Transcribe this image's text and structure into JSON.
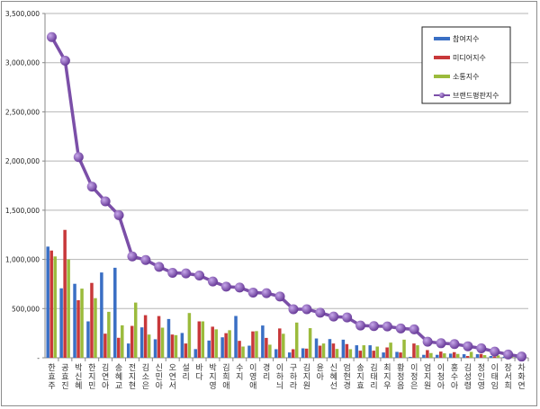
{
  "chart_data": {
    "type": "bar",
    "title": "",
    "xlabel": "",
    "ylabel": "",
    "ylim": [
      0,
      3500000
    ],
    "yticks": [
      "-",
      "500,000",
      "1,000,000",
      "1,500,000",
      "2,000,000",
      "2,500,000",
      "3,000,000",
      "3,500,000"
    ],
    "grid": true,
    "legend_position": "top-right",
    "categories": [
      "한효주",
      "공효진",
      "박신혜",
      "한지민",
      "김연아",
      "송혜교",
      "전지현",
      "김소은",
      "신민아",
      "오연서",
      "설리",
      "바다",
      "박지영",
      "김희애",
      "수지",
      "이영애",
      "경리",
      "이하늬",
      "구하라",
      "김지원",
      "윤아",
      "신혜선",
      "엄현경",
      "송지효",
      "김태리",
      "최지우",
      "황정음",
      "이정은",
      "엄지원",
      "이청아",
      "홍수아",
      "김성령",
      "정인영",
      "이태임",
      "장서희",
      "차화연"
    ],
    "series": [
      {
        "name": "참여지수",
        "kind": "bar",
        "color": "#3a6fc4",
        "values": [
          1130000,
          706000,
          752000,
          370000,
          867000,
          915000,
          145000,
          309000,
          188000,
          394000,
          252000,
          88000,
          175000,
          208000,
          425000,
          123000,
          328000,
          87000,
          54000,
          96000,
          196000,
          190000,
          184000,
          127000,
          127000,
          54000,
          60000,
          9000,
          30000,
          30000,
          42000,
          36000,
          36000,
          18000,
          10000,
          8000
        ]
      },
      {
        "name": "미디어지수",
        "kind": "bar",
        "color": "#c8383a",
        "values": [
          1090000,
          1300000,
          585000,
          761000,
          245000,
          203000,
          324000,
          433000,
          424000,
          236000,
          145000,
          370000,
          316000,
          250000,
          172000,
          268000,
          202000,
          298000,
          87000,
          93000,
          123000,
          145000,
          139000,
          72000,
          72000,
          105000,
          54000,
          145000,
          78000,
          63000,
          57000,
          18000,
          39000,
          12000,
          8000,
          6000
        ]
      },
      {
        "name": "소통지수",
        "kind": "bar",
        "color": "#9bbb3c",
        "values": [
          1030000,
          1000000,
          703000,
          606000,
          467000,
          330000,
          561000,
          236000,
          306000,
          230000,
          455000,
          370000,
          289000,
          280000,
          114000,
          271000,
          133000,
          244000,
          358000,
          301000,
          145000,
          90000,
          87000,
          127000,
          114000,
          154000,
          184000,
          127000,
          48000,
          45000,
          39000,
          60000,
          27000,
          24000,
          10000,
          6000
        ]
      },
      {
        "name": "브랜드평판지수",
        "kind": "line",
        "color": "#7b4fa8",
        "values": [
          3260000,
          3020000,
          2040000,
          1740000,
          1590000,
          1450000,
          1030000,
          994000,
          924000,
          864000,
          858000,
          836000,
          776000,
          723000,
          714000,
          663000,
          657000,
          623000,
          494000,
          494000,
          458000,
          419000,
          410000,
          328000,
          322000,
          319000,
          298000,
          289000,
          163000,
          148000,
          139000,
          117000,
          96000,
          63000,
          33000,
          12000
        ]
      }
    ]
  }
}
